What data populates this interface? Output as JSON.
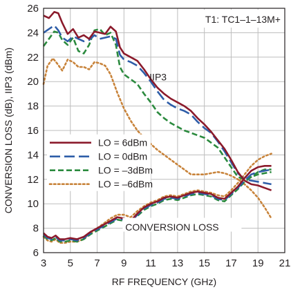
{
  "chart_data": {
    "type": "line",
    "xlabel": "RF FREQUENCY (GHz)",
    "ylabel": "CONVERSION LOSS (dB), IIP3 (dBm)",
    "xlim": [
      3,
      21
    ],
    "ylim": [
      6,
      26
    ],
    "xticks": [
      3,
      5,
      7,
      9,
      11,
      13,
      15,
      17,
      19,
      21
    ],
    "yticks": [
      6,
      8,
      10,
      12,
      14,
      16,
      18,
      20,
      22,
      24,
      26
    ],
    "grid": true,
    "legend_position": "left-middle",
    "annotations": {
      "transformer": "T1: TC1–1–13M+",
      "iip3": "IIP3",
      "conversion_loss": "CONVERSION LOSS"
    },
    "series": [
      {
        "name": "LO = 6dBm",
        "color": "#8b1a2b",
        "dash": "solid",
        "iip3": {
          "x": [
            3,
            3.4,
            3.8,
            4.1,
            4.4,
            4.8,
            5.2,
            5.6,
            6,
            6.4,
            6.8,
            7.2,
            7.6,
            8,
            8.4,
            8.7,
            9,
            9.5,
            10,
            10.5,
            11,
            11.5,
            12,
            12.5,
            13,
            13.5,
            14,
            14.5,
            15,
            15.5,
            16,
            16.5,
            17,
            17.5,
            18,
            18.5,
            19,
            19.5,
            20
          ],
          "y": [
            25.4,
            25.2,
            25.7,
            25.6,
            24.8,
            23.9,
            24.3,
            23.6,
            23.8,
            23.5,
            24.1,
            24.0,
            23.9,
            24.5,
            24.1,
            22.8,
            22.3,
            22.0,
            21.7,
            21.0,
            20.2,
            19.5,
            19.0,
            18.6,
            18.3,
            18.0,
            17.6,
            17.0,
            16.5,
            15.9,
            15.2,
            14.5,
            13.6,
            12.6,
            11.9,
            11.6,
            11.5,
            11.3,
            11.1
          ]
        },
        "conversion_loss": {
          "x": [
            3,
            3.3,
            3.6,
            3.9,
            4.2,
            4.6,
            5,
            5.5,
            6,
            6.5,
            7,
            7.5,
            8,
            8.5,
            9,
            9.5,
            10,
            10.5,
            11,
            11.5,
            12,
            12.5,
            13,
            13.5,
            14,
            14.5,
            15,
            15.5,
            16,
            16.5,
            17,
            17.5,
            18,
            18.5,
            19,
            19.5,
            20
          ],
          "y": [
            7.6,
            7.3,
            7.2,
            7.4,
            7.1,
            7.1,
            7.2,
            7.1,
            7.3,
            7.7,
            8.0,
            8.3,
            8.6,
            8.9,
            8.8,
            8.6,
            9.2,
            9.7,
            10.0,
            10.2,
            10.5,
            10.6,
            10.5,
            10.7,
            10.9,
            11.0,
            10.9,
            10.8,
            10.5,
            10.4,
            10.9,
            11.4,
            12.1,
            12.7,
            13.0,
            13.1,
            13.1
          ]
        }
      },
      {
        "name": "LO = 0dBm",
        "color": "#2e5da8",
        "dash": "long-dash",
        "iip3": {
          "x": [
            3,
            3.4,
            3.8,
            4.1,
            4.4,
            4.8,
            5.2,
            5.6,
            6,
            6.4,
            6.8,
            7.2,
            7.6,
            8,
            8.4,
            8.7,
            9,
            9.5,
            10,
            10.5,
            11,
            11.5,
            12,
            12.5,
            13,
            13.5,
            14,
            14.5,
            15,
            15.5,
            16,
            16.5,
            17,
            17.5,
            18,
            18.5,
            19,
            19.5,
            20
          ],
          "y": [
            24.0,
            24.3,
            24.6,
            24.2,
            23.6,
            23.3,
            23.7,
            23.5,
            23.3,
            23.4,
            23.8,
            23.5,
            23.6,
            23.7,
            23.5,
            22.2,
            21.8,
            21.6,
            21.3,
            20.7,
            20.0,
            19.2,
            18.5,
            18.1,
            17.8,
            17.6,
            17.3,
            16.7,
            16.2,
            15.8,
            15.1,
            14.3,
            13.4,
            12.5,
            12.0,
            11.9,
            11.8,
            11.7,
            11.6
          ]
        },
        "conversion_loss": {
          "x": [
            3,
            3.3,
            3.6,
            3.9,
            4.2,
            4.6,
            5,
            5.5,
            6,
            6.5,
            7,
            7.5,
            8,
            8.5,
            9,
            9.5,
            10,
            10.5,
            11,
            11.5,
            12,
            12.5,
            13,
            13.5,
            14,
            14.5,
            15,
            15.5,
            16,
            16.5,
            17,
            17.5,
            18,
            18.5,
            19,
            19.5,
            20
          ],
          "y": [
            7.5,
            7.2,
            7.1,
            7.3,
            7.0,
            7.0,
            7.1,
            7.0,
            7.2,
            7.6,
            7.9,
            8.2,
            8.5,
            8.8,
            8.7,
            8.5,
            9.1,
            9.6,
            9.9,
            10.1,
            10.4,
            10.5,
            10.4,
            10.6,
            10.8,
            10.9,
            10.8,
            10.7,
            10.4,
            10.3,
            10.8,
            11.3,
            11.9,
            12.4,
            12.6,
            12.7,
            12.8
          ]
        }
      },
      {
        "name": "LO = –3dBm",
        "color": "#2b8a3e",
        "dash": "dash",
        "iip3": {
          "x": [
            3,
            3.4,
            3.8,
            4.1,
            4.4,
            4.8,
            5.2,
            5.6,
            6,
            6.4,
            6.8,
            7.2,
            7.6,
            8,
            8.4,
            8.7,
            9,
            9.5,
            10,
            10.5,
            11,
            11.5,
            12,
            12.5,
            13,
            13.5,
            14,
            14.5,
            15,
            15.5,
            16,
            16.5,
            17,
            17.5,
            18,
            18.5,
            19,
            19.5,
            20
          ],
          "y": [
            22.9,
            23.5,
            24.1,
            24.0,
            23.4,
            23.0,
            23.6,
            22.5,
            22.3,
            23.0,
            24.2,
            24.3,
            23.8,
            24.0,
            23.0,
            21.2,
            20.6,
            20.2,
            19.8,
            19.0,
            18.3,
            17.5,
            17.0,
            16.6,
            16.3,
            16.0,
            15.8,
            15.6,
            15.4,
            15.0,
            14.6,
            13.8,
            13.0,
            12.2,
            12.0,
            12.2,
            12.6,
            12.8,
            12.8
          ]
        },
        "conversion_loss": {
          "x": [
            3,
            3.3,
            3.6,
            3.9,
            4.2,
            4.6,
            5,
            5.5,
            6,
            6.5,
            7,
            7.5,
            8,
            8.5,
            9,
            9.5,
            10,
            10.5,
            11,
            11.5,
            12,
            12.5,
            13,
            13.5,
            14,
            14.5,
            15,
            15.5,
            16,
            16.5,
            17,
            17.5,
            18,
            18.5,
            19,
            19.5,
            20
          ],
          "y": [
            7.4,
            7.1,
            7.0,
            7.2,
            6.9,
            6.9,
            7.0,
            6.9,
            7.1,
            7.5,
            7.8,
            8.1,
            8.4,
            8.7,
            8.6,
            8.4,
            9.0,
            9.5,
            9.8,
            10.0,
            10.3,
            10.4,
            10.3,
            10.5,
            10.7,
            10.8,
            10.7,
            10.6,
            10.3,
            10.2,
            10.7,
            11.2,
            11.8,
            12.2,
            12.4,
            12.5,
            12.6
          ]
        }
      },
      {
        "name": "LO = –6dBm",
        "color": "#c8833a",
        "dash": "dot",
        "iip3": {
          "x": [
            3,
            3.3,
            3.7,
            4,
            4.4,
            4.8,
            5.2,
            5.6,
            6,
            6.4,
            6.8,
            7.2,
            7.6,
            8,
            8.5,
            9,
            9.5,
            10,
            10.5,
            11,
            11.5,
            12,
            12.5,
            13,
            13.5,
            14,
            14.5,
            15,
            15.5,
            16,
            16.5,
            17,
            17.5,
            18,
            18.5,
            19,
            19.5,
            20
          ],
          "y": [
            19.8,
            21.3,
            21.9,
            21.5,
            20.9,
            21.8,
            21.6,
            21.2,
            21.2,
            21.0,
            21.6,
            21.5,
            21.3,
            20.6,
            19.1,
            17.8,
            16.8,
            16.0,
            15.4,
            14.9,
            14.4,
            14.0,
            13.6,
            13.2,
            12.8,
            12.4,
            12.4,
            12.4,
            12.5,
            12.6,
            12.5,
            12.3,
            12.0,
            11.6,
            11.1,
            10.5,
            9.7,
            8.8
          ]
        },
        "conversion_loss": {
          "x": [
            3,
            3.3,
            3.6,
            3.9,
            4.2,
            4.6,
            5,
            5.5,
            6,
            6.5,
            7,
            7.5,
            8,
            8.5,
            9,
            9.5,
            10,
            10.5,
            11,
            11.5,
            12,
            12.5,
            13,
            13.5,
            14,
            14.5,
            15,
            15.5,
            16,
            16.5,
            17,
            17.5,
            18,
            18.5,
            19,
            19.5,
            20
          ],
          "y": [
            7.3,
            7.0,
            6.9,
            7.1,
            6.8,
            6.8,
            6.9,
            6.9,
            7.1,
            7.6,
            8.0,
            8.4,
            8.8,
            9.1,
            9.1,
            8.9,
            9.4,
            9.8,
            10.1,
            10.3,
            10.6,
            10.7,
            10.6,
            10.8,
            11.0,
            11.1,
            11.0,
            10.9,
            10.7,
            10.6,
            11.1,
            11.7,
            12.4,
            13.1,
            13.6,
            13.9,
            14.1
          ]
        }
      }
    ]
  }
}
